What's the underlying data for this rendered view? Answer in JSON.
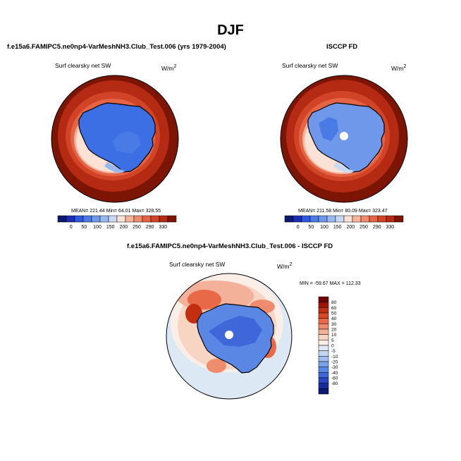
{
  "page": {
    "title": "DJF"
  },
  "colors": {
    "abs_scale": [
      "#0d1870",
      "#1c2fb4",
      "#2f58e2",
      "#4a7ae6",
      "#6f98ea",
      "#9ab8f0",
      "#c9d9f4",
      "#fbe2d4",
      "#f6b399",
      "#f08a6c",
      "#e56445",
      "#d24427",
      "#b52a12",
      "#7d1504"
    ],
    "diff_scale": [
      "#720303",
      "#9c1405",
      "#c12e10",
      "#d84b29",
      "#e86948",
      "#ee8c6d",
      "#f4b19a",
      "#f8d4c3",
      "#fbeee6",
      "#dde8f5",
      "#c2d6ef",
      "#9fbdee",
      "#7aa2eb",
      "#5a86e4",
      "#3f67da",
      "#2a47c1",
      "#1a2c9b",
      "#0d1870"
    ]
  },
  "chart_data": [
    {
      "type": "polar-map",
      "panel": "top-left",
      "case_title": "f.e15a6.FAMIPC5.ne0np4-VarMeshNH3.Club_Test.006 (yrs 1979-2004)",
      "variable": "Surf clearsky net SW",
      "units": "W/m",
      "units_exp": "2",
      "stats": {
        "mean": 221.44,
        "min": 64.01,
        "max": 328.55
      },
      "stats_text": "MEAN= 221.44  Min=  64.01  Max= 328.55",
      "levels": [
        0,
        50,
        100,
        150,
        200,
        250,
        290,
        330
      ],
      "level_labels": [
        "0",
        "50",
        "100",
        "150",
        "200",
        "250",
        "290",
        "330"
      ]
    },
    {
      "type": "polar-map",
      "panel": "top-right",
      "case_title": "ISCCP FD",
      "variable": "Surf clearsky net SW",
      "units": "W/m",
      "units_exp": "2",
      "stats": {
        "mean": 211.58,
        "min": 80.09,
        "max": 323.47
      },
      "stats_text": "MEAN= 211.58  Min=  80.09  Max= 323.47",
      "levels": [
        0,
        50,
        100,
        150,
        200,
        250,
        290,
        330
      ],
      "level_labels": [
        "0",
        "50",
        "100",
        "150",
        "200",
        "250",
        "290",
        "330"
      ]
    },
    {
      "type": "polar-map-difference",
      "panel": "bottom",
      "case_title": "f.e15a6.FAMIPC5.ne0np4-VarMeshNH3.Club_Test.006 - ISCCP FD",
      "variable": "Surf clearsky net SW",
      "units": "W/m",
      "units_exp": "2",
      "stats": {
        "min": -59.67,
        "max": 112.33
      },
      "stats_text": "MIN = -59.67 MAX = 112.33",
      "levels": [
        80,
        60,
        50,
        40,
        30,
        20,
        10,
        5,
        0,
        -5,
        -10,
        -20,
        -30,
        -40,
        -60,
        -80
      ],
      "level_labels": [
        "80",
        "60",
        "50",
        "40",
        "30",
        "20",
        "10",
        "5",
        "0",
        "-5",
        "-10",
        "-20",
        "-30",
        "-40",
        "-60",
        "-80"
      ]
    }
  ]
}
